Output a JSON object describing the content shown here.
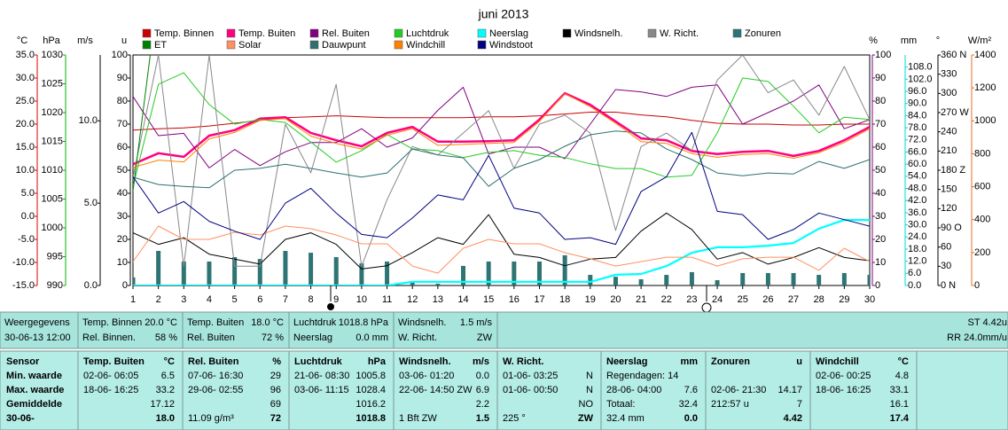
{
  "chart_data": {
    "type": "line",
    "title": "juni 2013",
    "x": [
      1,
      2,
      3,
      4,
      5,
      6,
      7,
      8,
      9,
      10,
      11,
      12,
      13,
      14,
      15,
      16,
      17,
      18,
      19,
      20,
      21,
      22,
      23,
      24,
      25,
      26,
      27,
      28,
      29,
      30
    ],
    "xlim": [
      1,
      30
    ],
    "xticks": [
      1,
      2,
      3,
      4,
      5,
      6,
      7,
      8,
      9,
      10,
      11,
      12,
      13,
      14,
      15,
      16,
      17,
      18,
      19,
      20,
      21,
      22,
      23,
      24,
      25,
      26,
      27,
      28,
      29,
      30
    ],
    "axes": [
      {
        "label": "°C",
        "color": "#e00000",
        "lim": [
          -15,
          35
        ],
        "ticks": [
          {
            "value": 35,
            "label": "35.0"
          },
          {
            "value": 30,
            "label": "30.0"
          },
          {
            "value": 25,
            "label": "25.0"
          },
          {
            "value": 20,
            "label": "20.0"
          },
          {
            "value": 15,
            "label": "15.0"
          },
          {
            "value": 10,
            "label": "10.0"
          },
          {
            "value": 5,
            "label": "5.0"
          },
          {
            "value": 0,
            "label": "0.0"
          },
          {
            "value": -5,
            "label": "-5.0"
          },
          {
            "value": -10,
            "label": "-10.0"
          },
          {
            "value": -15,
            "label": "-15.0"
          }
        ]
      },
      {
        "label": "hPa",
        "color": "#00b000",
        "lim": [
          990,
          1030
        ],
        "ticks": [
          1030,
          1025,
          1020,
          1015,
          1010,
          1005,
          1000,
          995,
          990
        ]
      },
      {
        "label": "m/s",
        "color": "#000000",
        "lim": [
          0,
          14
        ],
        "ticks": [
          {
            "value": 10,
            "label": "10.0"
          },
          {
            "value": 5,
            "label": "5.0"
          },
          {
            "value": 0,
            "label": "0.0"
          }
        ]
      },
      {
        "label": "u",
        "color": "#000000",
        "lim": [
          0,
          100
        ],
        "ticks": [
          100,
          90,
          80,
          70,
          60,
          50,
          40,
          30,
          20,
          10,
          0
        ]
      },
      {
        "label": "%",
        "color": "#800080",
        "lim": [
          0,
          100
        ],
        "ticks": [
          100,
          90,
          80,
          70,
          60,
          50,
          40,
          30,
          20,
          10,
          0
        ]
      },
      {
        "label": "mm",
        "color": "#00d8d8",
        "lim": [
          0,
          114
        ],
        "ticks": [
          {
            "value": 108,
            "label": "108.0"
          },
          {
            "value": 102,
            "label": "102.0"
          },
          {
            "value": 96,
            "label": "96.0"
          },
          {
            "value": 90,
            "label": "90.0"
          },
          {
            "value": 84,
            "label": "84.0"
          },
          {
            "value": 78,
            "label": "78.0"
          },
          {
            "value": 72,
            "label": "72.0"
          },
          {
            "value": 66,
            "label": "66.0"
          },
          {
            "value": 60,
            "label": "60.0"
          },
          {
            "value": 54,
            "label": "54.0"
          },
          {
            "value": 48,
            "label": "48.0"
          },
          {
            "value": 42,
            "label": "42.0"
          },
          {
            "value": 36,
            "label": "36.0"
          },
          {
            "value": 30,
            "label": "30.0"
          },
          {
            "value": 24,
            "label": "24.0"
          },
          {
            "value": 18,
            "label": "18.0"
          },
          {
            "value": 12,
            "label": "12.0"
          },
          {
            "value": 6,
            "label": "6.0"
          },
          {
            "value": 0,
            "label": "0.0"
          }
        ]
      },
      {
        "label": "°",
        "color": "#000000",
        "lim": [
          0,
          360
        ],
        "ticks": [
          {
            "value": 360,
            "label": "360 N"
          },
          330,
          300,
          {
            "value": 270,
            "label": "270 W"
          },
          240,
          210,
          {
            "value": 180,
            "label": "180 Z"
          },
          150,
          120,
          {
            "value": 90,
            "label": "90 O"
          },
          60,
          30,
          {
            "value": 0,
            "label": "0 N"
          }
        ]
      },
      {
        "label": "W/m²",
        "color": "#e07020",
        "lim": [
          0,
          1400
        ],
        "ticks": [
          1400,
          1200,
          1000,
          800,
          600,
          400,
          200,
          0
        ]
      }
    ],
    "series": [
      {
        "name": "Temp. Binnen",
        "color": "#cc0000",
        "axis": "°C",
        "values": [
          18.7,
          19.0,
          19.2,
          19.6,
          20.2,
          20.8,
          21.4,
          21.6,
          21.8,
          21.6,
          21.4,
          21.4,
          21.4,
          21.4,
          21.6,
          21.6,
          21.8,
          22.2,
          22.6,
          22.6,
          22.0,
          21.6,
          20.8,
          20.2,
          20.0,
          20.0,
          19.8,
          19.8,
          20.0,
          20.0
        ]
      },
      {
        "name": "Temp. Buiten",
        "color": "#ff0080",
        "axis": "°C",
        "values": [
          11.3,
          13.7,
          12.9,
          17.5,
          18.7,
          21.2,
          21.5,
          18.1,
          16.5,
          15.2,
          18.1,
          19.4,
          16.2,
          16.2,
          16.3,
          16.5,
          21.0,
          26.7,
          24.2,
          20.6,
          16.9,
          16.5,
          14.2,
          13.5,
          14.0,
          14.2,
          13.1,
          14.2,
          16.5,
          19.4
        ]
      },
      {
        "name": "Rel. Buiten",
        "color": "#800080",
        "axis": "%",
        "values": [
          82,
          65,
          66,
          51,
          59,
          52,
          58,
          62,
          62,
          68,
          60,
          64,
          76,
          86,
          57,
          60,
          60,
          55,
          70,
          85,
          84,
          82,
          86,
          87,
          70,
          75,
          80,
          87,
          68,
          72
        ]
      },
      {
        "name": "Luchtdruk",
        "color": "#22cc22",
        "axis": "hPa",
        "values": [
          1007.2,
          1024.9,
          1026.9,
          1021.4,
          1018.0,
          1018.8,
          1018.3,
          1014.9,
          1011.4,
          1013.4,
          1016.2,
          1013.7,
          1013.4,
          1012.2,
          1013.1,
          1013.4,
          1012.6,
          1012.2,
          1011.1,
          1010.3,
          1010.3,
          1008.8,
          1009.1,
          1016.5,
          1026.0,
          1025.4,
          1021.1,
          1016.5,
          1019.2,
          1018.8
        ]
      },
      {
        "name": "Neerslag",
        "color": "#00ffff",
        "axis": "mm",
        "values": [
          0,
          0,
          0,
          0,
          0,
          0,
          0,
          0,
          0,
          0,
          0,
          1.8,
          1.8,
          1.8,
          1.8,
          1.8,
          1.8,
          1.8,
          1.8,
          5.3,
          5.7,
          9.6,
          16.2,
          18.9,
          18.9,
          19.7,
          21.0,
          28.1,
          32.4,
          32.4
        ]
      },
      {
        "name": "Windsnelh.",
        "color": "#000000",
        "axis": "m/s",
        "values": [
          3.2,
          2.5,
          2.9,
          1.9,
          1.6,
          1.3,
          2.8,
          3.2,
          2.5,
          1.0,
          1.2,
          2.0,
          2.9,
          2.5,
          4.3,
          1.9,
          1.7,
          1.2,
          1.6,
          1.7,
          3.3,
          4.4,
          3.4,
          1.6,
          2.0,
          1.3,
          1.7,
          2.3,
          1.7,
          1.5
        ]
      },
      {
        "name": "W. Richt.",
        "color": "#888888",
        "axis": "°",
        "values": [
          169,
          360,
          30,
          360,
          30,
          30,
          252,
          176,
          314,
          30,
          134,
          217,
          204,
          238,
          273,
          183,
          252,
          266,
          238,
          86,
          217,
          238,
          211,
          321,
          360,
          301,
          321,
          266,
          342,
          259
        ]
      },
      {
        "name": "Zonuren",
        "color": "#2e7474",
        "axis": "u",
        "type": "bar",
        "values": [
          3.5,
          15.0,
          10.4,
          10.4,
          12.3,
          11.5,
          15.0,
          14.2,
          12.3,
          9.6,
          10.4,
          1.9,
          0.8,
          8.5,
          10.4,
          10.4,
          10.4,
          13.1,
          4.6,
          3.8,
          2.7,
          4.6,
          5.8,
          2.3,
          5.4,
          5.4,
          5.4,
          4.6,
          5.4,
          4.6
        ]
      },
      {
        "name": "ET",
        "color": "#008000",
        "axis": "u",
        "values": [
          41,
          128,
          null,
          null,
          null,
          null,
          null,
          null,
          null,
          null,
          null,
          null,
          null,
          null,
          null,
          null,
          null,
          null,
          null,
          null,
          null,
          null,
          null,
          null,
          null,
          null,
          null,
          null,
          null,
          null
        ]
      },
      {
        "name": "Solar",
        "color": "#ff9060",
        "axis": "W/m²",
        "values": [
          145,
          361,
          280,
          280,
          323,
          307,
          361,
          345,
          307,
          253,
          253,
          118,
          75,
          226,
          280,
          253,
          253,
          199,
          162,
          118,
          145,
          172,
          172,
          118,
          162,
          172,
          172,
          92,
          226,
          145
        ]
      },
      {
        "name": "Dauwpunt",
        "color": "#2f6f6f",
        "axis": "°C",
        "values": [
          8.5,
          6.9,
          6.5,
          6.2,
          10.0,
          10.4,
          11.3,
          10.4,
          9.4,
          8.5,
          9.4,
          14.6,
          13.3,
          12.7,
          6.5,
          10.4,
          12.3,
          15.2,
          17.7,
          18.5,
          18.1,
          14.6,
          12.3,
          9.4,
          8.8,
          9.4,
          9.2,
          11.9,
          10.4,
          12.3
        ]
      },
      {
        "name": "Windchill",
        "color": "#ff8000",
        "axis": "°C",
        "values": [
          10.6,
          12.2,
          11.8,
          16.8,
          18.2,
          20.8,
          21.2,
          17.4,
          15.8,
          14.6,
          17.6,
          19.0,
          15.4,
          15.6,
          15.8,
          16.0,
          20.6,
          26.6,
          23.8,
          20.2,
          16.2,
          15.8,
          13.6,
          12.8,
          13.4,
          13.6,
          12.6,
          13.8,
          16.0,
          19.0
        ]
      },
      {
        "name": "Windstoot",
        "color": "#000080",
        "axis": "m/s",
        "values": [
          6.6,
          4.4,
          5.1,
          3.9,
          3.3,
          2.8,
          5.0,
          5.9,
          4.4,
          3.1,
          2.9,
          4.1,
          5.5,
          5.2,
          7.9,
          4.7,
          4.4,
          2.8,
          2.9,
          2.5,
          5.7,
          6.6,
          9.3,
          4.5,
          4.3,
          2.8,
          3.4,
          4.4,
          4.0,
          3.6
        ]
      }
    ]
  },
  "summary": {
    "cells": [
      {
        "rows": [
          [
            "Weergegevens"
          ],
          [
            "30-06-13 12:00"
          ]
        ]
      },
      {
        "rows": [
          [
            "Temp. Binnen",
            "20.0 °C"
          ],
          [
            "Rel. Binnen.",
            "58 %"
          ]
        ]
      },
      {
        "rows": [
          [
            "Temp. Buiten",
            "18.0 °C"
          ],
          [
            "Rel. Buiten",
            "72 %"
          ]
        ]
      },
      {
        "rows": [
          [
            "Luchtdruk",
            "1018.8 hPa"
          ],
          [
            "Neerslag",
            "0.0 mm"
          ]
        ]
      },
      {
        "rows": [
          [
            "Windsnelh.",
            "1.5 m/s"
          ],
          [
            "W. Richt.",
            "ZW"
          ]
        ]
      }
    ],
    "right": [
      "ST 4.42u",
      "RR 24.0mm/u"
    ]
  },
  "stats": {
    "labels": [
      "Sensor",
      "Min. waarde",
      "Max. waarde",
      "Gemiddelde",
      "30-06-"
    ],
    "columns": [
      {
        "header": "Temp. Buiten",
        "unit": "°C",
        "rows": [
          {
            "l": "02-06- 06:05",
            "r": "6.5"
          },
          {
            "l": "18-06- 16:25",
            "r": "33.2"
          },
          {
            "r": "17.12"
          },
          {
            "r": "18.0"
          }
        ]
      },
      {
        "header": "Rel. Buiten",
        "unit": "%",
        "rows": [
          {
            "l": "07-06- 16:30",
            "r": "29"
          },
          {
            "l": "29-06- 02:55",
            "r": "96"
          },
          {
            "r": "69"
          },
          {
            "l": "11.09 g/m³",
            "r": "72"
          }
        ]
      },
      {
        "header": "Luchtdruk",
        "unit": "hPa",
        "rows": [
          {
            "l": "21-06- 08:30",
            "r": "1005.8"
          },
          {
            "l": "03-06- 11:15",
            "r": "1028.4"
          },
          {
            "r": "1016.2"
          },
          {
            "r": "1018.8"
          }
        ]
      },
      {
        "header": "Windsnelh.",
        "unit": "m/s",
        "rows": [
          {
            "l": "03-06- 01:20",
            "r": "0.0"
          },
          {
            "l": "22-06- 14:50 ZW",
            "r": "6.9"
          },
          {
            "r": "2.2"
          },
          {
            "l": "1 Bft ZW",
            "r": "1.5"
          }
        ]
      },
      {
        "header": "W. Richt.",
        "rows": [
          {
            "l": "01-06- 03:25",
            "r": "N"
          },
          {
            "l": "01-06- 00:50",
            "r": "N"
          },
          {
            "r": "NO"
          },
          {
            "l": "225 °",
            "r": "ZW"
          }
        ]
      },
      {
        "header": "Neerslag",
        "unit": "mm",
        "rows": [
          {
            "l": "Regendagen: 14"
          },
          {
            "l": "28-06- 04:00",
            "r": "7.6"
          },
          {
            "l": "Totaal:",
            "r": "32.4"
          },
          {
            "l": "32.4 mm",
            "r": "0.0"
          }
        ]
      },
      {
        "header": "Zonuren",
        "unit": "u",
        "rows": [
          {},
          {
            "l": "02-06- 21:30",
            "r": "14.17"
          },
          {
            "l": "212:57 u",
            "r": "7"
          },
          {
            "r": "4.42"
          }
        ]
      },
      {
        "header": "Windchill",
        "unit": "°C",
        "rows": [
          {
            "l": "02-06- 00:25",
            "r": "4.8"
          },
          {
            "l": "18-06- 16:25",
            "r": "33.1"
          },
          {
            "r": "16.1"
          },
          {
            "r": "17.4"
          }
        ]
      }
    ]
  }
}
